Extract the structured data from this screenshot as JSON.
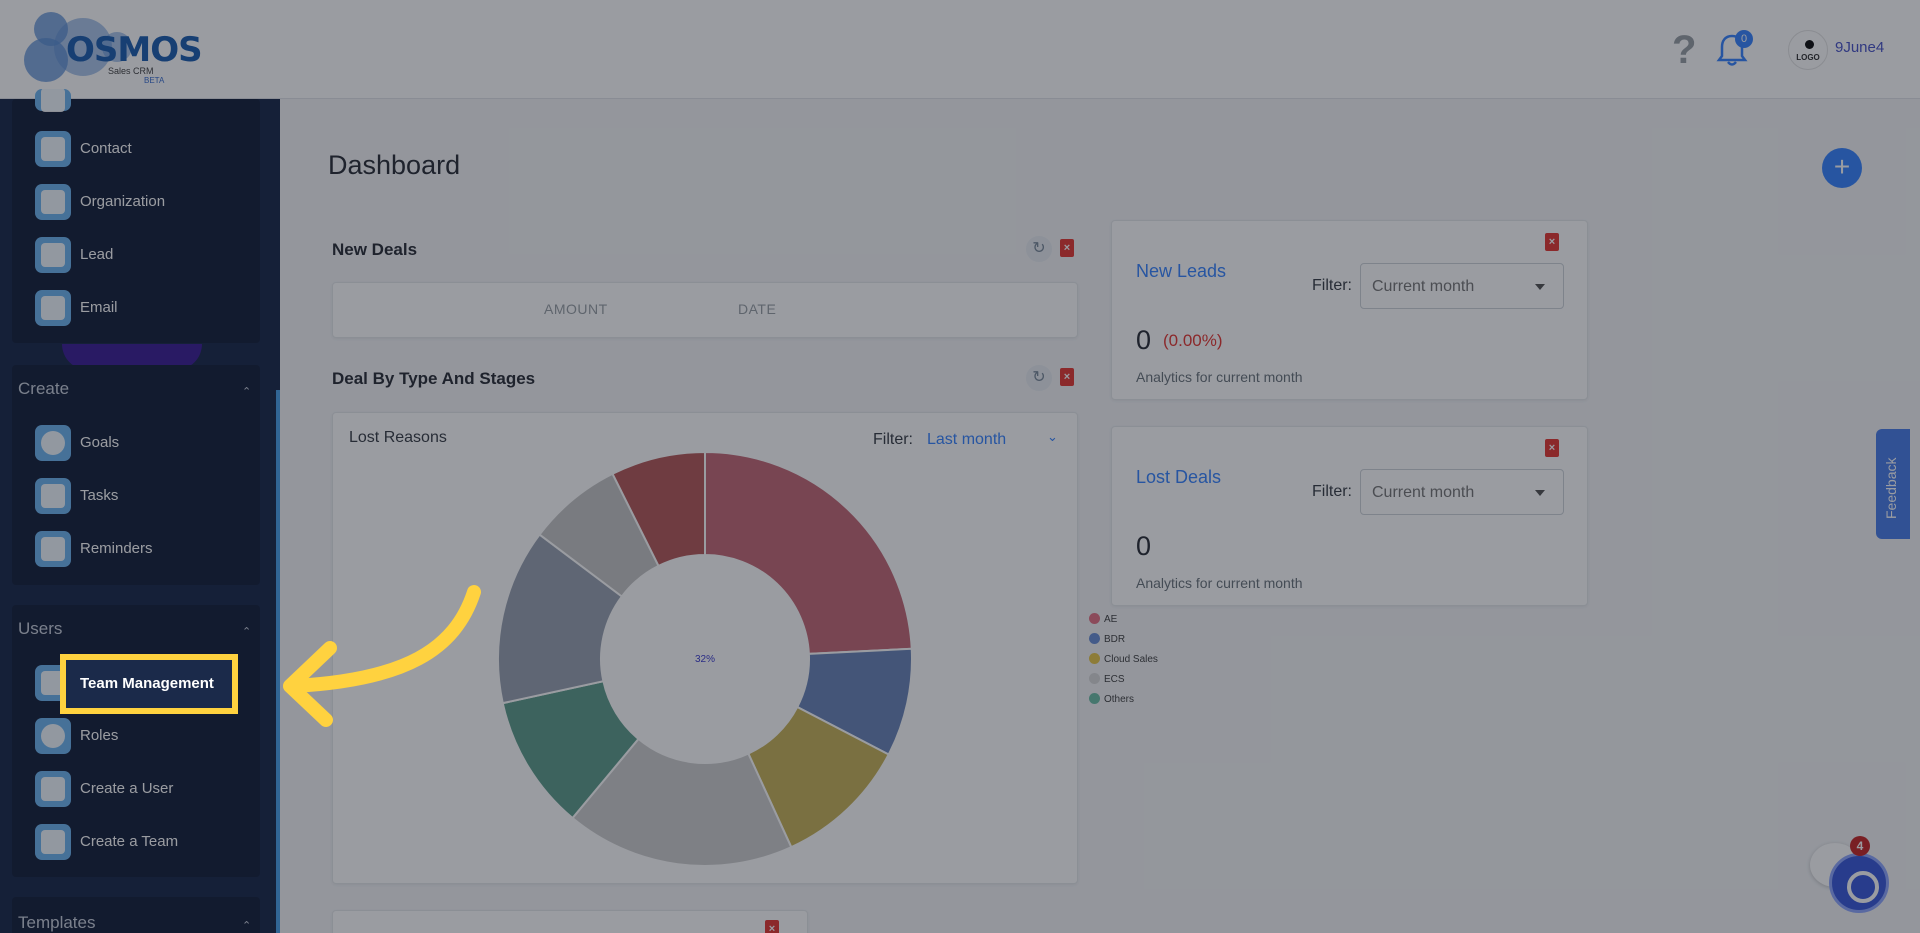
{
  "header": {
    "logo_text": "OSMOS",
    "logo_sub": "Sales CRM",
    "logo_beta": "BETA",
    "help_glyph": "?",
    "notification_count": "0",
    "user_logo_text": "LOGO",
    "username": "9June4"
  },
  "sidebar": {
    "top_items": [
      {
        "label": "Contact",
        "icon": "contact-icon"
      },
      {
        "label": "Organization",
        "icon": "organization-icon"
      },
      {
        "label": "Lead",
        "icon": "lead-icon"
      },
      {
        "label": "Email",
        "icon": "email-icon"
      }
    ],
    "sections": [
      {
        "title": "Create",
        "items": [
          {
            "label": "Goals",
            "icon": "goals-icon"
          },
          {
            "label": "Tasks",
            "icon": "tasks-icon"
          },
          {
            "label": "Reminders",
            "icon": "reminders-icon"
          }
        ]
      },
      {
        "title": "Users",
        "items": [
          {
            "label": "Team Management",
            "icon": "team-icon"
          },
          {
            "label": "Roles",
            "icon": "roles-icon"
          },
          {
            "label": "Create a User",
            "icon": "create-user-icon"
          },
          {
            "label": "Create a Team",
            "icon": "create-team-icon"
          }
        ]
      },
      {
        "title": "Templates",
        "items": []
      }
    ]
  },
  "main": {
    "title": "Dashboard",
    "fab_glyph": "+",
    "new_deals": {
      "title": "New Deals",
      "columns": [
        "AMOUNT",
        "DATE"
      ]
    },
    "deal_by_type": {
      "title": "Deal By Type And Stages",
      "chart_title": "Lost Reasons",
      "filter_label": "Filter:",
      "filter_value": "Last month"
    },
    "new_leads": {
      "title": "New Leads",
      "filter_label": "Filter:",
      "filter_value": "Current month",
      "count": "0",
      "pct": "(0.00%)",
      "analytics": "Analytics for current month"
    },
    "lost_deals": {
      "title": "Lost Deals",
      "filter_label": "Filter:",
      "filter_value": "Current month",
      "count": "0",
      "analytics": "Analytics for current month"
    }
  },
  "chart_data": {
    "type": "pie",
    "title": "Lost Reasons",
    "center_label": "32%",
    "legend": [
      "AE",
      "BDR",
      "Cloud Sales",
      "ECS",
      "Others"
    ],
    "legend_colors": [
      "#e57385",
      "#6b8fd6",
      "#e8c84a",
      "#d9d9d9",
      "#6fbfa8"
    ],
    "slices": [
      {
        "value": 23,
        "color": "#c46a78"
      },
      {
        "value": 8,
        "color": "#6b86b8"
      },
      {
        "value": 10,
        "color": "#c8b45a"
      },
      {
        "value": 17,
        "color": "#cfcfcf"
      },
      {
        "value": 10,
        "color": "#5f9e8c"
      },
      {
        "value": 13,
        "color": "#9aa3b2"
      },
      {
        "value": 7,
        "color": "#c6c6c6"
      },
      {
        "value": 7,
        "color": "#b65b5b"
      }
    ]
  },
  "feedback_label": "Feedback",
  "chat_badge": "4",
  "colors": {
    "accent": "#3a86ff",
    "sidebar_bg": "#1b2a4a",
    "highlight": "#ffd23f",
    "danger": "#e53935"
  }
}
